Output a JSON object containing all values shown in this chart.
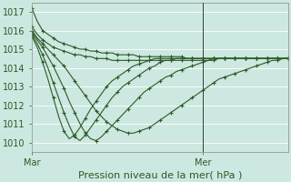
{
  "title": "",
  "xlabel": "Pression niveau de la mer( hPa )",
  "ylabel": "",
  "background_color": "#cce8e0",
  "grid_color": "#b0d8d0",
  "line_color": "#2d5a27",
  "xlim": [
    0,
    48
  ],
  "ylim": [
    1009.5,
    1017.5
  ],
  "yticks": [
    1010,
    1011,
    1012,
    1013,
    1014,
    1015,
    1016,
    1017
  ],
  "xtick_positions": [
    0,
    32
  ],
  "xtick_labels": [
    "Mar",
    "Mer"
  ],
  "vline_x": 32,
  "series": [
    [
      1017.2,
      1016.5,
      1016.0,
      1015.8,
      1015.6,
      1015.4,
      1015.3,
      1015.2,
      1015.1,
      1015.0,
      1015.0,
      1014.9,
      1014.9,
      1014.8,
      1014.8,
      1014.8,
      1014.7,
      1014.7,
      1014.7,
      1014.7,
      1014.6,
      1014.6,
      1014.6,
      1014.6,
      1014.6,
      1014.6,
      1014.6,
      1014.6,
      1014.6,
      1014.5,
      1014.5,
      1014.5,
      1014.5,
      1014.5,
      1014.5,
      1014.5,
      1014.5,
      1014.5,
      1014.5,
      1014.5,
      1014.5,
      1014.5,
      1014.5,
      1014.5,
      1014.5,
      1014.5,
      1014.5,
      1014.5,
      1014.5
    ],
    [
      1016.2,
      1015.8,
      1015.5,
      1015.3,
      1015.1,
      1015.0,
      1014.9,
      1014.8,
      1014.7,
      1014.7,
      1014.6,
      1014.6,
      1014.5,
      1014.5,
      1014.5,
      1014.4,
      1014.4,
      1014.4,
      1014.4,
      1014.4,
      1014.4,
      1014.4,
      1014.4,
      1014.4,
      1014.4,
      1014.4,
      1014.4,
      1014.4,
      1014.4,
      1014.4,
      1014.4,
      1014.4,
      1014.4,
      1014.4,
      1014.5,
      1014.5,
      1014.5,
      1014.5,
      1014.5,
      1014.5,
      1014.5,
      1014.5,
      1014.5,
      1014.5,
      1014.5,
      1014.5,
      1014.5,
      1014.5,
      1014.5
    ],
    [
      1016.0,
      1015.6,
      1015.3,
      1015.0,
      1014.7,
      1014.4,
      1014.1,
      1013.7,
      1013.3,
      1012.9,
      1012.5,
      1012.1,
      1011.7,
      1011.4,
      1011.1,
      1010.9,
      1010.7,
      1010.6,
      1010.5,
      1010.5,
      1010.6,
      1010.7,
      1010.8,
      1011.0,
      1011.2,
      1011.4,
      1011.6,
      1011.8,
      1012.0,
      1012.2,
      1012.4,
      1012.6,
      1012.8,
      1013.0,
      1013.2,
      1013.4,
      1013.5,
      1013.6,
      1013.7,
      1013.8,
      1013.9,
      1014.0,
      1014.1,
      1014.2,
      1014.3,
      1014.4,
      1014.4,
      1014.5,
      1014.5
    ],
    [
      1015.9,
      1015.5,
      1015.1,
      1014.6,
      1014.1,
      1013.5,
      1012.9,
      1012.2,
      1011.6,
      1011.0,
      1010.5,
      1010.2,
      1010.1,
      1010.3,
      1010.6,
      1010.9,
      1011.2,
      1011.5,
      1011.8,
      1012.1,
      1012.4,
      1012.7,
      1012.9,
      1013.1,
      1013.3,
      1013.5,
      1013.6,
      1013.8,
      1013.9,
      1014.0,
      1014.1,
      1014.2,
      1014.3,
      1014.4,
      1014.4,
      1014.5,
      1014.5,
      1014.5,
      1014.5,
      1014.5,
      1014.5,
      1014.5,
      1014.5,
      1014.5,
      1014.5,
      1014.5,
      1014.5,
      1014.5,
      1014.5
    ],
    [
      1015.8,
      1015.3,
      1014.7,
      1014.0,
      1013.2,
      1012.4,
      1011.6,
      1010.9,
      1010.3,
      1010.1,
      1010.4,
      1010.8,
      1011.2,
      1011.6,
      1012.0,
      1012.4,
      1012.7,
      1013.0,
      1013.2,
      1013.4,
      1013.6,
      1013.8,
      1014.0,
      1014.1,
      1014.3,
      1014.4,
      1014.4,
      1014.5,
      1014.5,
      1014.5,
      1014.5,
      1014.5,
      1014.5,
      1014.5,
      1014.5,
      1014.5,
      1014.5,
      1014.5,
      1014.5,
      1014.5,
      1014.5,
      1014.5,
      1014.5,
      1014.5,
      1014.5,
      1014.5,
      1014.5,
      1014.5,
      1014.5
    ],
    [
      1015.7,
      1015.1,
      1014.3,
      1013.4,
      1012.4,
      1011.4,
      1010.6,
      1010.2,
      1010.4,
      1010.8,
      1011.3,
      1011.8,
      1012.2,
      1012.6,
      1013.0,
      1013.3,
      1013.5,
      1013.7,
      1013.9,
      1014.1,
      1014.2,
      1014.3,
      1014.4,
      1014.5,
      1014.5,
      1014.5,
      1014.5,
      1014.5,
      1014.5,
      1014.5,
      1014.5,
      1014.5,
      1014.5,
      1014.5,
      1014.5,
      1014.5,
      1014.5,
      1014.5,
      1014.5,
      1014.5,
      1014.5,
      1014.5,
      1014.5,
      1014.5,
      1014.5,
      1014.5,
      1014.5,
      1014.5,
      1014.5
    ]
  ],
  "marker_style": "+",
  "marker_size": 3,
  "line_width": 0.8,
  "marker_every": 2,
  "font_size": 8,
  "tick_font_size": 7,
  "fig_width": 3.2,
  "fig_height": 2.0,
  "dpi": 100
}
